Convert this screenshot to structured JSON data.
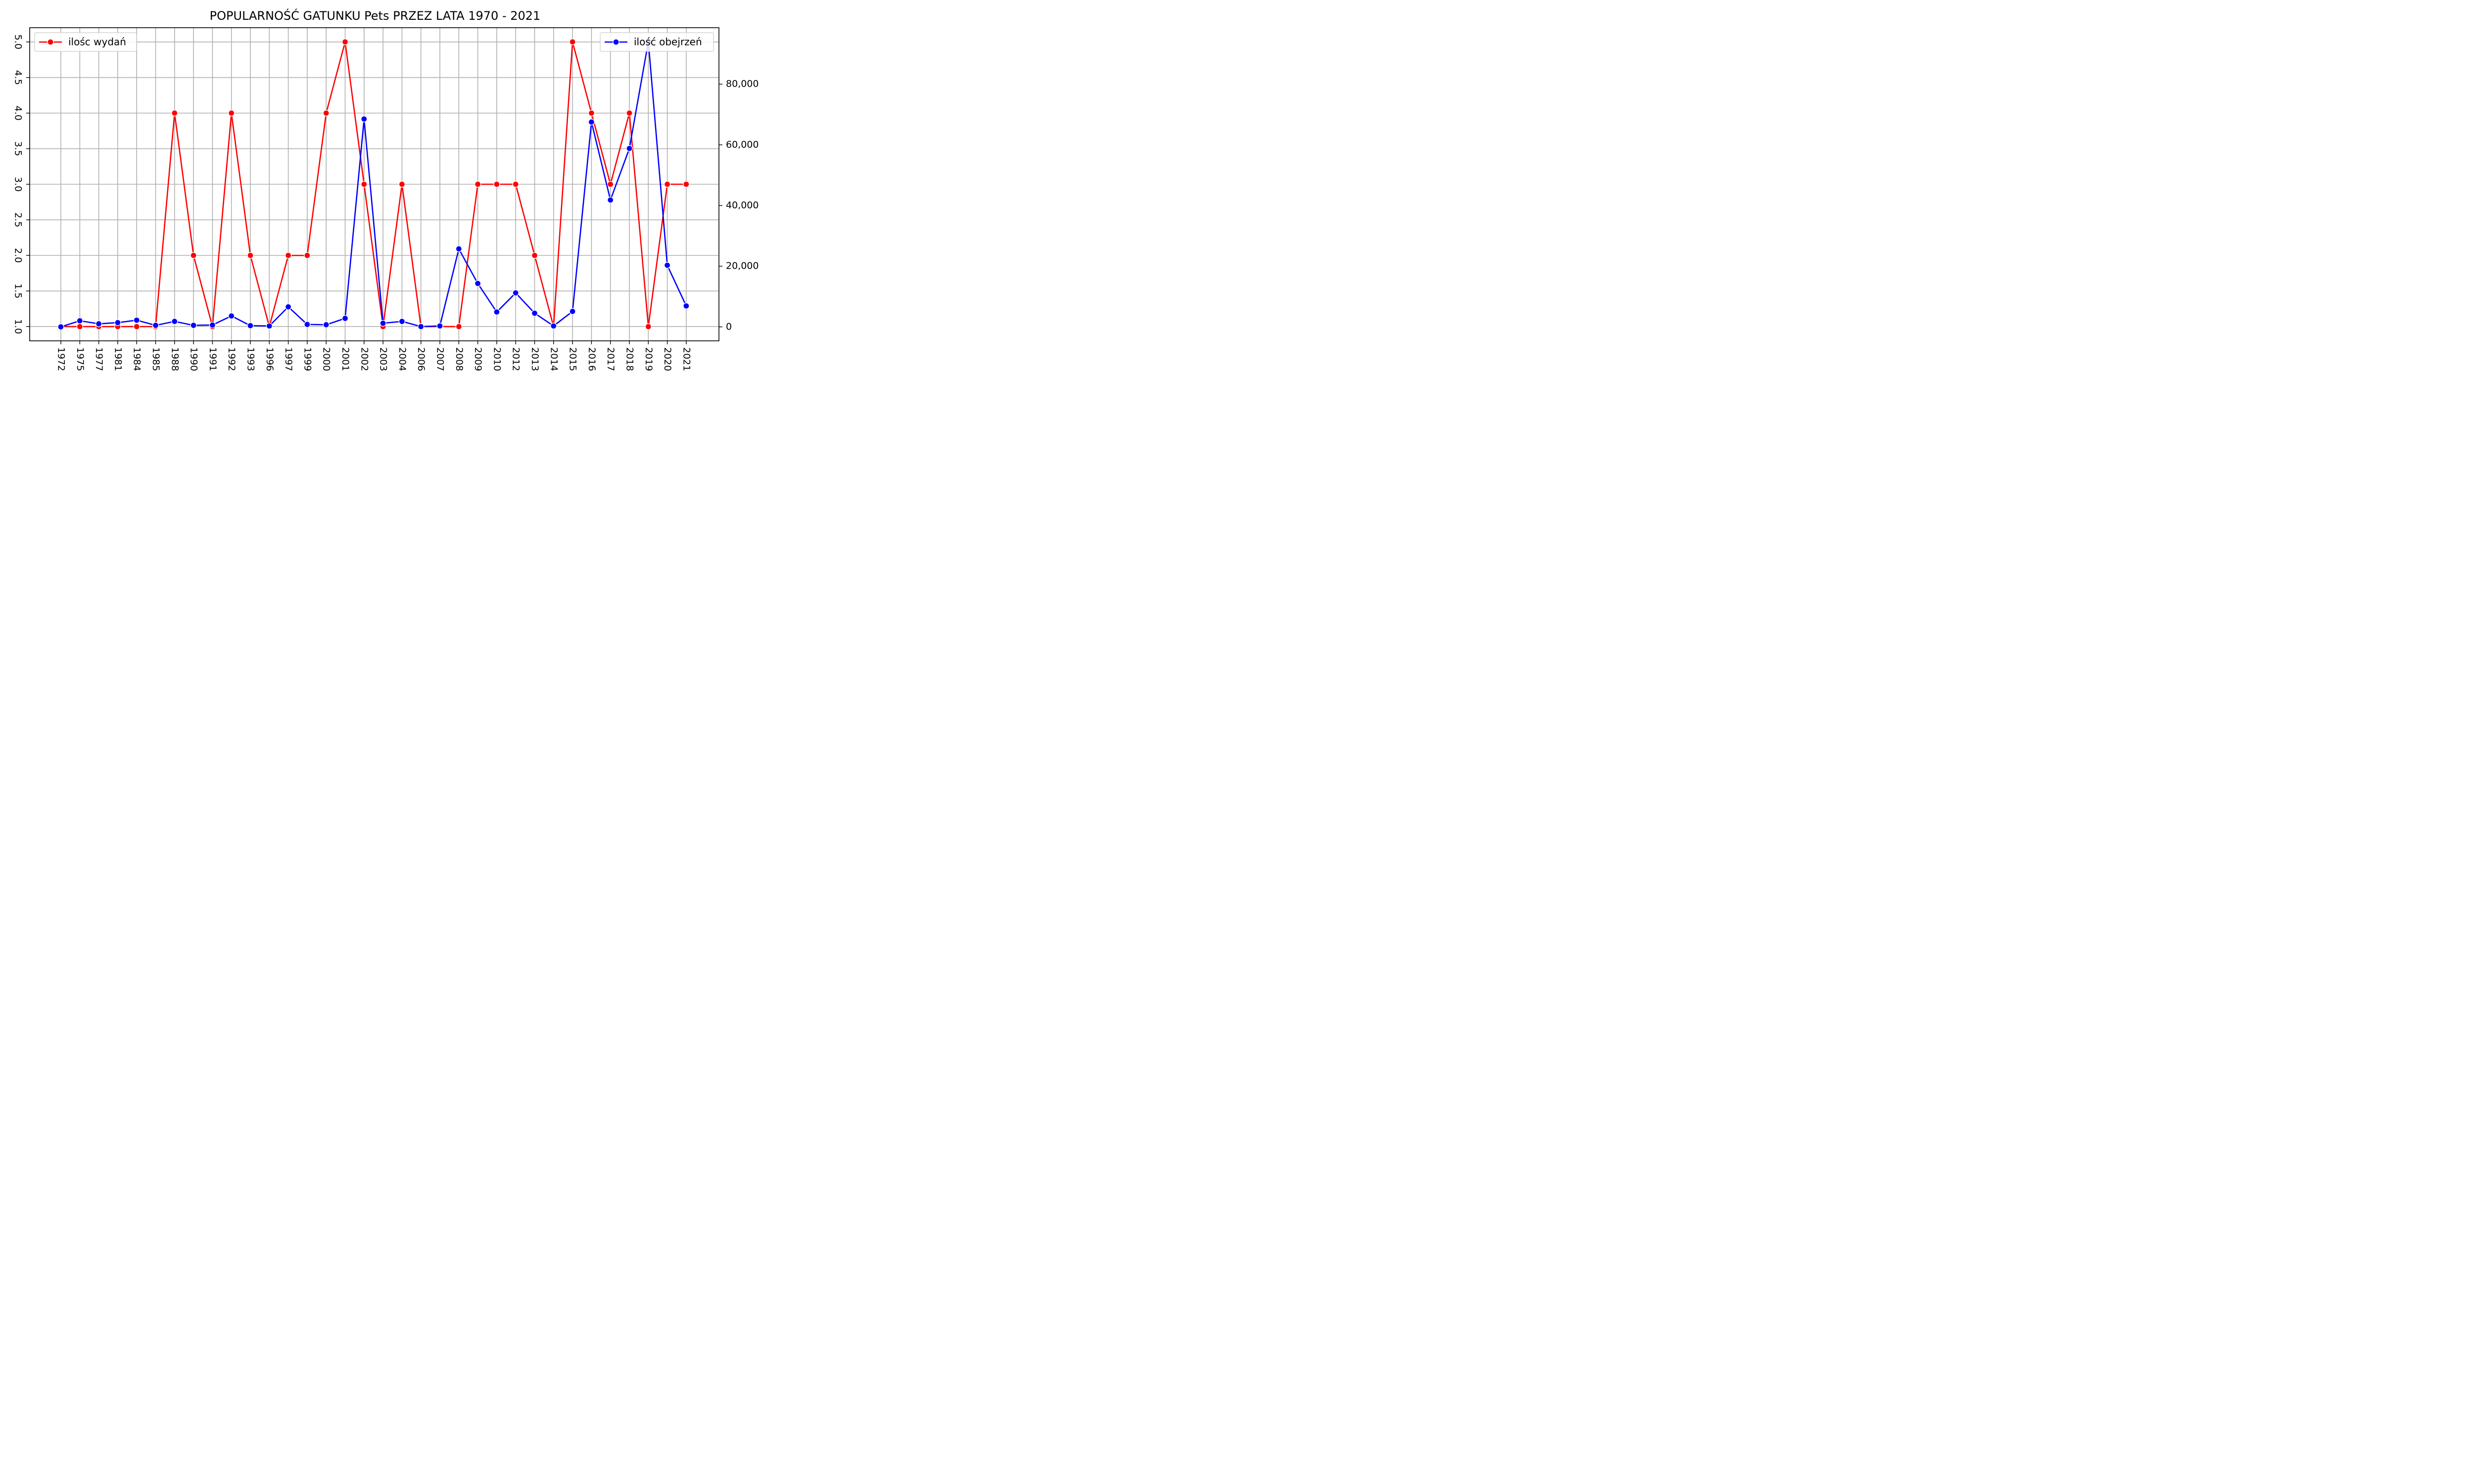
{
  "chart_data": {
    "type": "line",
    "title": "POPULARNOŚĆ GATUNKU Pets PRZEZ LATA 1970 - 2021",
    "xlabel": "",
    "ylabel": "",
    "categories": [
      "1972",
      "1975",
      "1977",
      "1981",
      "1984",
      "1985",
      "1988",
      "1990",
      "1991",
      "1992",
      "1993",
      "1996",
      "1997",
      "1999",
      "2000",
      "2001",
      "2002",
      "2003",
      "2004",
      "2006",
      "2007",
      "2008",
      "2009",
      "2010",
      "2012",
      "2013",
      "2014",
      "2015",
      "2016",
      "2017",
      "2018",
      "2019",
      "2020",
      "2021"
    ],
    "series": [
      {
        "name": "ilośc wydań",
        "axis": "left",
        "color": "#ff0000",
        "values": [
          1,
          1,
          1,
          1,
          1,
          1,
          4,
          2,
          1,
          4,
          2,
          1,
          2,
          2,
          4,
          5,
          3,
          1,
          3,
          1,
          1,
          1,
          3,
          3,
          3,
          2,
          1,
          5,
          4,
          3,
          4,
          1,
          3,
          3
        ]
      },
      {
        "name": "ilość obejrzeń",
        "axis": "right",
        "color": "#0000ff",
        "values": [
          0,
          2000,
          1000,
          1400,
          2200,
          500,
          1800,
          500,
          600,
          3600,
          400,
          300,
          6600,
          800,
          700,
          2800,
          68500,
          1200,
          1800,
          100,
          300,
          25700,
          14300,
          4900,
          11200,
          4500,
          300,
          5100,
          67500,
          41800,
          58800,
          94000,
          20300,
          6900
        ]
      }
    ],
    "y_left": {
      "lim": [
        0.8,
        5.2
      ],
      "ticks": [
        "1.0",
        "1.5",
        "2.0",
        "2.5",
        "3.0",
        "3.5",
        "4.0",
        "4.5",
        "5.0"
      ]
    },
    "y_right": {
      "lim": [
        -4600,
        98600
      ],
      "ticks": [
        "0",
        "20,000",
        "40,000",
        "60,000",
        "80,000"
      ]
    },
    "grid": true,
    "legend_left": {
      "placement": "upper-left",
      "label": "ilośc wydań"
    },
    "legend_right": {
      "placement": "upper-right",
      "label": "ilość obejrzeń"
    }
  }
}
